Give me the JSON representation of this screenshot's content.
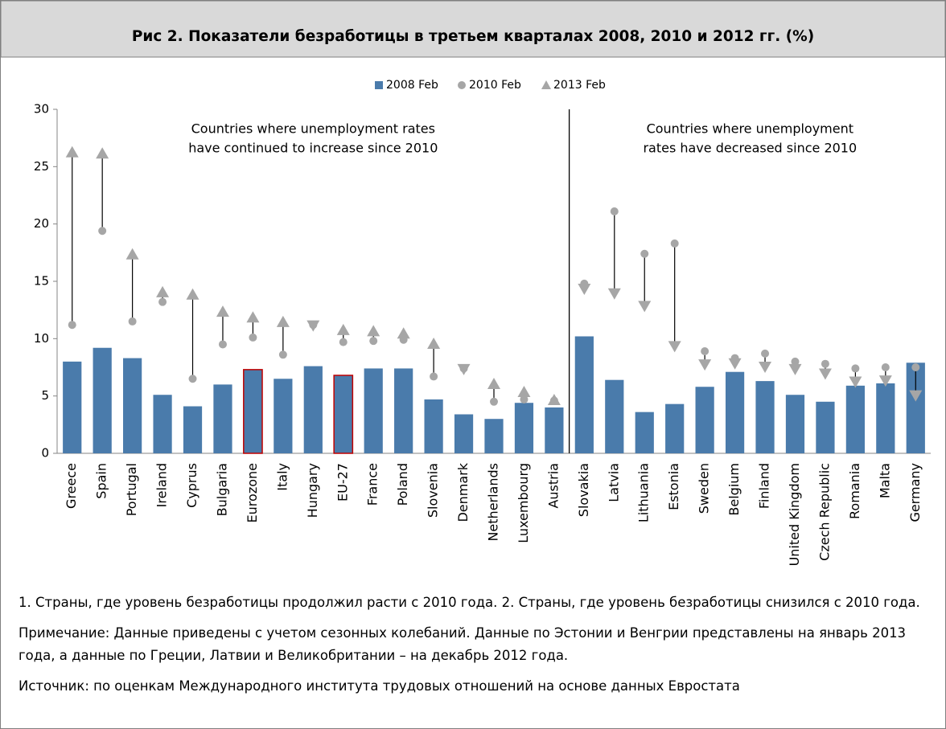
{
  "chart_data": {
    "type": "bar_dot",
    "title": "Рис 2.  Показатели безработицы в третьем кварталах 2008, 2010 и 2012 гг. (%)",
    "categories": [
      "Greece",
      "Spain",
      "Portugal",
      "Ireland",
      "Cyprus",
      "Bulgaria",
      "Eurozone",
      "Italy",
      "Hungary",
      "EU-27",
      "France",
      "Poland",
      "Slovenia",
      "Denmark",
      "Netherlands",
      "Luxembourg",
      "Austria",
      "Slovakia",
      "Latvia",
      "Lithuania",
      "Estonia",
      "Sweden",
      "Belgium",
      "Finland",
      "United Kingdom",
      "Czech Republic",
      "Romania",
      "Malta",
      "Germany"
    ],
    "series": [
      {
        "name": "2008 Feb",
        "color": "#4a7bab",
        "marker": "bar",
        "values": [
          8.0,
          9.2,
          8.3,
          5.1,
          4.1,
          6.0,
          7.3,
          6.5,
          7.6,
          6.8,
          7.4,
          7.4,
          4.7,
          3.4,
          3.0,
          4.4,
          4.0,
          10.2,
          6.4,
          3.6,
          4.3,
          5.8,
          7.1,
          6.3,
          5.1,
          4.5,
          5.9,
          6.1,
          7.9
        ]
      },
      {
        "name": "2010 Feb",
        "color": "#a6a6a6",
        "marker": "circle",
        "values": [
          11.2,
          19.4,
          11.5,
          13.2,
          6.5,
          9.5,
          10.1,
          8.6,
          11.2,
          9.7,
          9.8,
          9.9,
          6.7,
          7.4,
          4.5,
          4.7,
          4.6,
          14.8,
          21.1,
          17.4,
          18.3,
          8.9,
          8.3,
          8.7,
          8.0,
          7.8,
          7.4,
          7.5,
          7.5
        ]
      },
      {
        "name": "2013 Feb",
        "color": "#a6a6a6",
        "marker": "triangle",
        "values": [
          26.3,
          26.2,
          17.4,
          14.1,
          13.9,
          12.4,
          11.9,
          11.5,
          11.1,
          10.8,
          10.7,
          10.5,
          9.6,
          7.3,
          6.1,
          5.4,
          4.7,
          14.3,
          13.9,
          12.8,
          9.3,
          7.7,
          7.8,
          7.5,
          7.3,
          6.9,
          6.2,
          6.3,
          5.0
        ]
      }
    ],
    "highlighted": [
      6,
      9
    ],
    "highlight_color": "#c00000",
    "ylim": [
      0,
      30
    ],
    "yticks": [
      0,
      5,
      10,
      15,
      20,
      25,
      30
    ],
    "annotations": [
      {
        "lines": [
          "Countries where unemployment rates",
          "have continued to increase since 2010"
        ]
      },
      {
        "lines": [
          "Countries where unemployment",
          "rates have decreased since 2010"
        ]
      }
    ],
    "legend": "top"
  },
  "notes": [
    "1. Страны, где уровень безработицы продолжил расти с 2010 года. 2. Страны, где уровень безработицы снизился с 2010 года.",
    "Примечание: Данные приведены с учетом сезонных колебаний. Данные по Эстонии и Венгрии представлены на январь 2013 года, а данные по Греции, Латвии и Великобритании – на декабрь 2012 года.",
    "Источник: по оценкам Международного института трудовых отношений на основе данных Евростата"
  ]
}
